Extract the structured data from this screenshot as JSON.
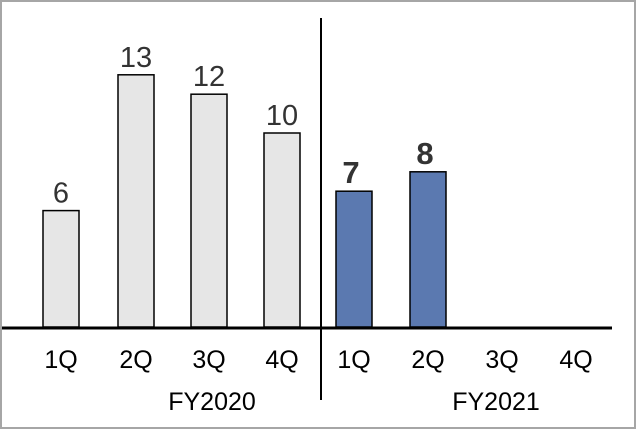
{
  "chart_data": {
    "type": "bar",
    "groups": [
      {
        "label": "FY2020",
        "categories": [
          "1Q",
          "2Q",
          "3Q",
          "4Q"
        ],
        "values": [
          6,
          13,
          12,
          10
        ],
        "color": "#e6e6e6"
      },
      {
        "label": "FY2021",
        "categories": [
          "1Q",
          "2Q",
          "3Q",
          "4Q"
        ],
        "values": [
          7,
          8,
          null,
          null
        ],
        "color": "#5b79b0"
      }
    ],
    "ylim": [
      0,
      13
    ],
    "grid": false,
    "legend": false
  }
}
